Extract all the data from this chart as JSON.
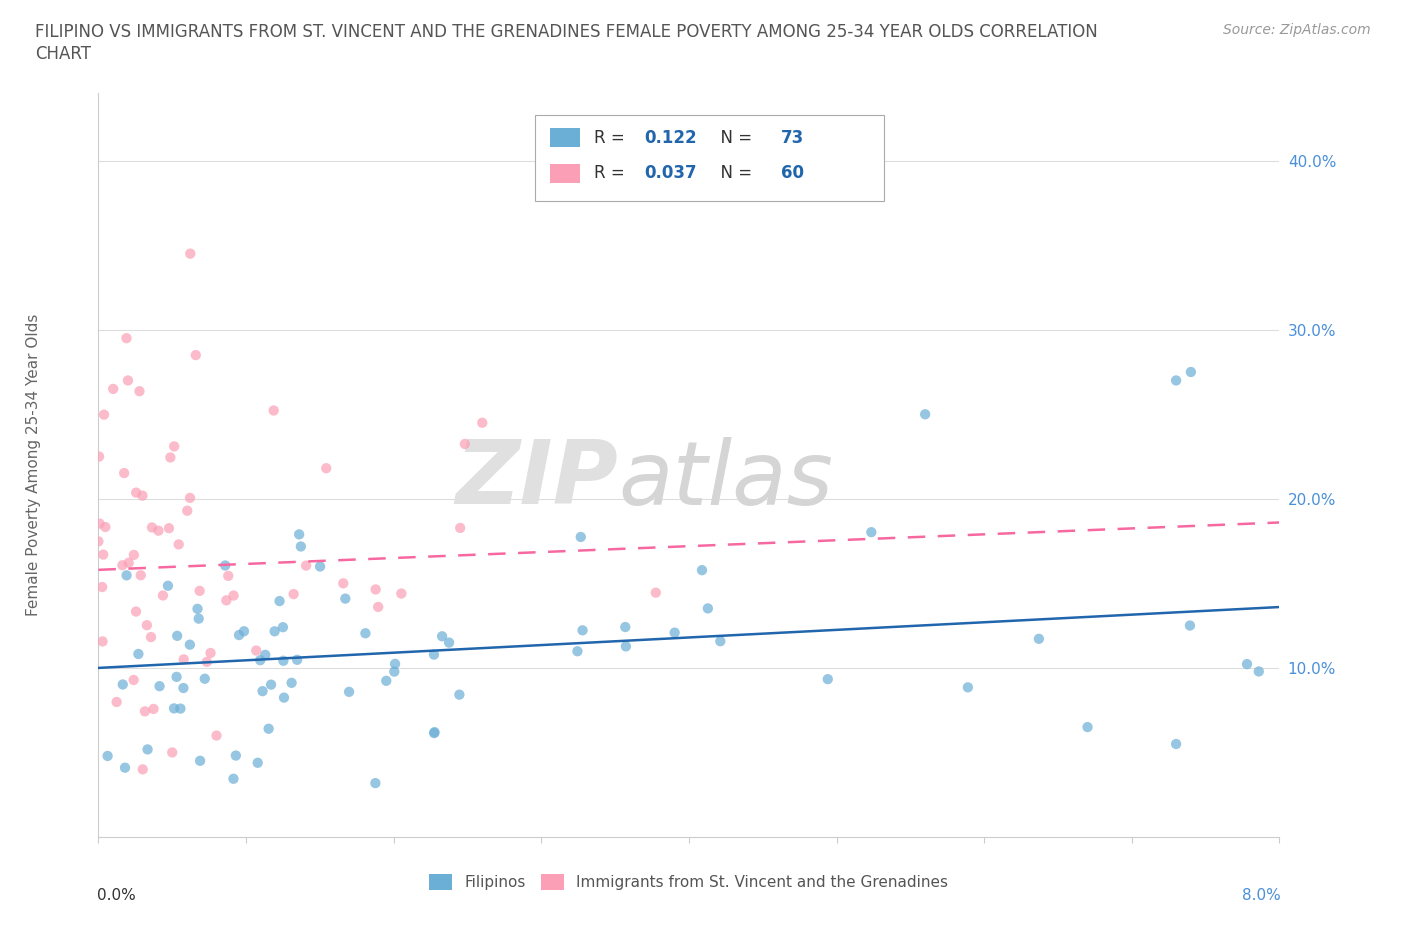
{
  "title_line1": "FILIPINO VS IMMIGRANTS FROM ST. VINCENT AND THE GRENADINES FEMALE POVERTY AMONG 25-34 YEAR OLDS CORRELATION",
  "title_line2": "CHART",
  "source": "Source: ZipAtlas.com",
  "ylabel": "Female Poverty Among 25-34 Year Olds",
  "y_ticks": [
    "10.0%",
    "20.0%",
    "30.0%",
    "40.0%"
  ],
  "y_tick_vals": [
    0.1,
    0.2,
    0.3,
    0.4
  ],
  "x_range": [
    0.0,
    0.08
  ],
  "y_range": [
    0.0,
    0.44
  ],
  "color_blue": "#6baed6",
  "color_pink": "#fa9fb5",
  "color_blue_line": "#2166ac",
  "color_pink_line": "#f768a1",
  "legend_r1_val": "0.122",
  "legend_n1_val": "73",
  "legend_r2_val": "0.037",
  "legend_n2_val": "60",
  "watermark_zip": "ZIP",
  "watermark_atlas": "atlas"
}
